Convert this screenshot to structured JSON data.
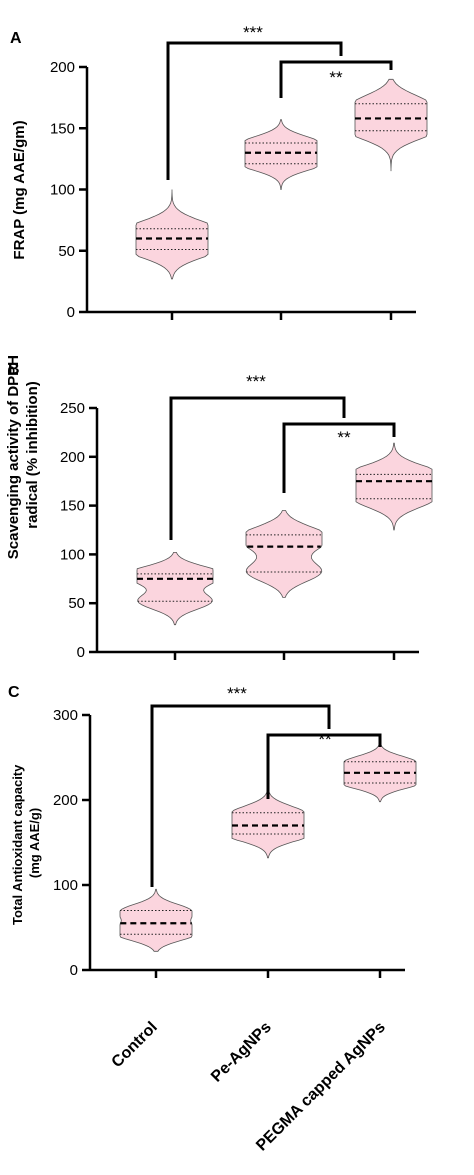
{
  "figure": {
    "colors": {
      "violin_fill": "#fbd5de",
      "violin_edge": "#555555",
      "axis": "#000000"
    },
    "categories": [
      "Control",
      "Pe-AgNPs",
      "PEGMA capped AgNPs"
    ]
  },
  "chart_data": [
    {
      "type": "violin",
      "panel": "A",
      "ylabel": "FRAP (mg AAE/gm)",
      "ylim": [
        0,
        200
      ],
      "yticks": [
        0,
        50,
        100,
        150,
        200
      ],
      "categories": [
        "Control",
        "Pe-AgNPs",
        "PEGMA capped AgNPs"
      ],
      "violins": [
        {
          "min": 27,
          "q1": 51,
          "median": 60,
          "q3": 68,
          "max": 100
        },
        {
          "min": 100,
          "q1": 121,
          "median": 130,
          "q3": 138,
          "max": 157
        },
        {
          "min": 115,
          "q1": 148,
          "median": 158,
          "q3": 170,
          "max": 190
        }
      ],
      "significance": [
        {
          "from": 0,
          "to": [
            1,
            2
          ],
          "label": "***"
        },
        {
          "from": 1,
          "to": 2,
          "label": "**"
        }
      ]
    },
    {
      "type": "violin",
      "panel": "B",
      "ylabel": "Scavenging activity of DPPH radical (% inhibition)",
      "ylim": [
        0,
        250
      ],
      "yticks": [
        0,
        50,
        100,
        150,
        200,
        250
      ],
      "categories": [
        "Control",
        "Pe-AgNPs",
        "PEGMA capped AgNPs"
      ],
      "violins": [
        {
          "min": 28,
          "q1": 52,
          "median": 75,
          "q3": 80,
          "max": 102
        },
        {
          "min": 56,
          "q1": 82,
          "median": 108,
          "q3": 120,
          "max": 145
        },
        {
          "min": 125,
          "q1": 157,
          "median": 175,
          "q3": 182,
          "max": 214
        }
      ],
      "significance": [
        {
          "from": 0,
          "to": [
            1,
            2
          ],
          "label": "***"
        },
        {
          "from": 1,
          "to": 2,
          "label": "**"
        }
      ]
    },
    {
      "type": "violin",
      "panel": "C",
      "ylabel": "Total Antioxidant capacity (mg AAE/g)",
      "ylim": [
        0,
        300
      ],
      "yticks": [
        0,
        100,
        200,
        300
      ],
      "categories": [
        "Control",
        "Pe-AgNPs",
        "PEGMA capped AgNPs"
      ],
      "violins": [
        {
          "min": 22,
          "q1": 42,
          "median": 55,
          "q3": 70,
          "max": 95
        },
        {
          "min": 132,
          "q1": 160,
          "median": 170,
          "q3": 185,
          "max": 215
        },
        {
          "min": 198,
          "q1": 220,
          "median": 232,
          "q3": 245,
          "max": 265
        }
      ],
      "significance": [
        {
          "from": 0,
          "to": [
            1,
            2
          ],
          "label": "***"
        },
        {
          "from": 1,
          "to": 2,
          "label": "**"
        }
      ]
    }
  ]
}
